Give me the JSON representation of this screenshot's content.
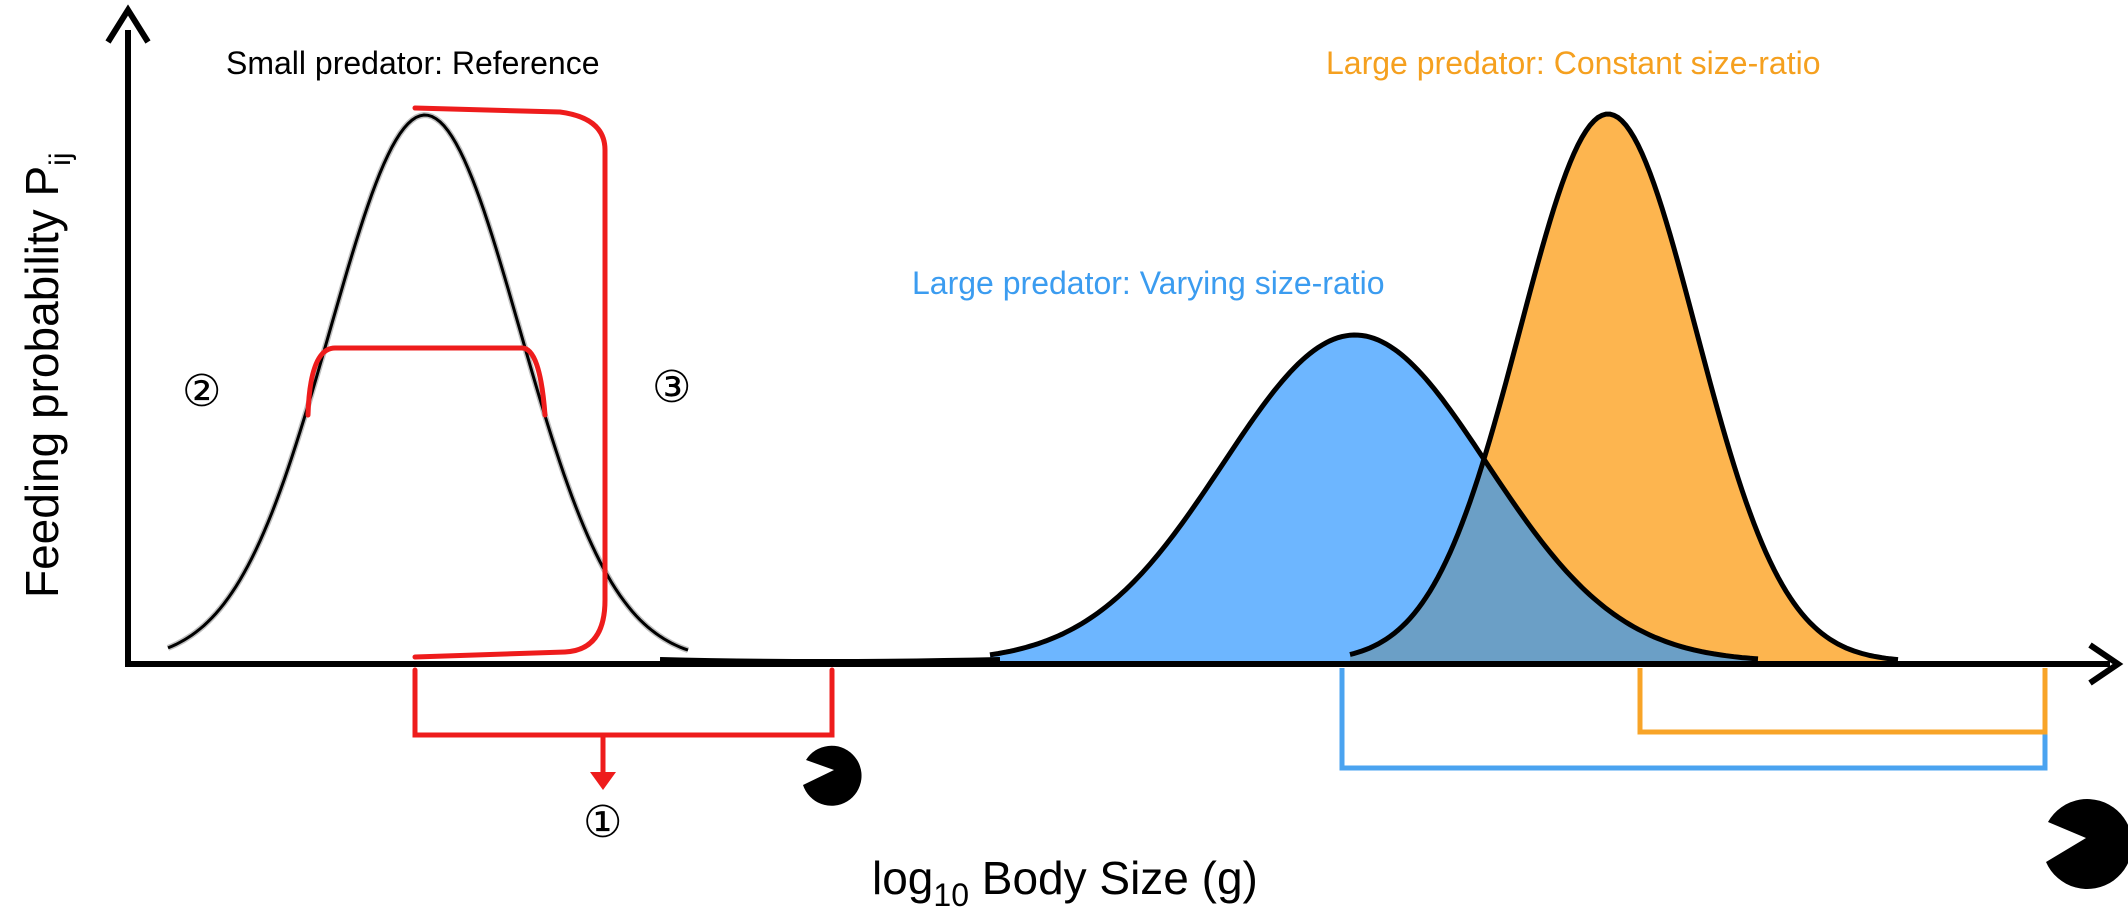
{
  "axes": {
    "x_label": {
      "main": "log",
      "subscript": "10",
      "rest": " Body Size (g)"
    },
    "y_label": {
      "main": "Feeding probability P",
      "subscript": "ij"
    }
  },
  "curves": {
    "small_reference": {
      "label": "Small predator: Reference",
      "label_color": "#000000",
      "fill_color": "#c8c8c8",
      "stroke_color": "#000000"
    },
    "large_varying": {
      "label": "Large predator: Varying size-ratio",
      "label_color": "#3b9cf0",
      "fill_color": "#6db6ff",
      "stroke_color": "#000000"
    },
    "large_constant": {
      "label": "Large predator: Constant size-ratio",
      "label_color": "#f5a01f",
      "fill_color": "#fdb54f",
      "stroke_color": "#000000"
    }
  },
  "annotations": {
    "marker_1": "①",
    "marker_2": "②",
    "marker_3": "③",
    "bracket_color": "#ee1c1c",
    "blue_bracket_color": "#4aa3f0",
    "orange_bracket_color": "#f8a428"
  },
  "icons": {
    "small_predator": "pacman-small-icon",
    "large_predator": "pacman-large-icon"
  }
}
